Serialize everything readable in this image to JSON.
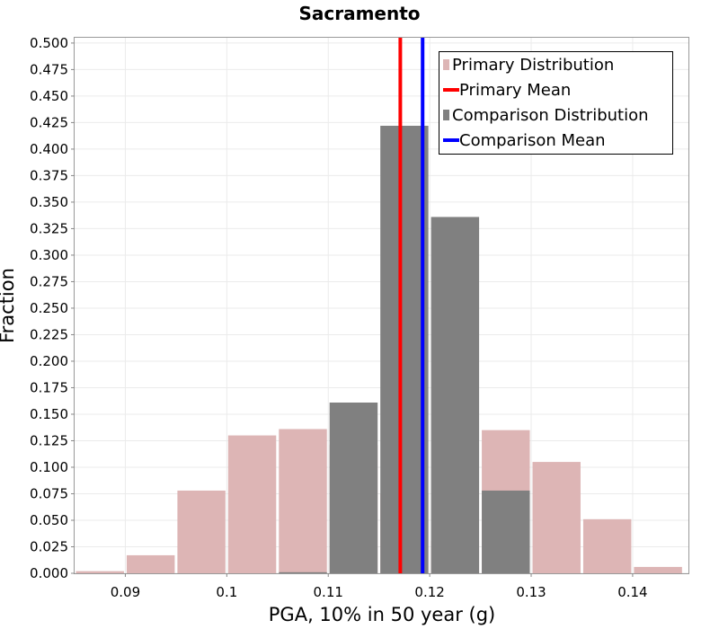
{
  "chart_data": {
    "type": "bar",
    "title": "Sacramento",
    "xlabel": "PGA, 10% in 50 year (g)",
    "ylabel": "Fraction",
    "xlim": [
      0.085,
      0.1455
    ],
    "ylim": [
      0,
      0.505
    ],
    "bin_width": 0.005,
    "x_ticks": [
      "0.09",
      "0.1",
      "0.11",
      "0.12",
      "0.13",
      "0.14"
    ],
    "x_tick_values": [
      0.09,
      0.1,
      0.11,
      0.12,
      0.13,
      0.14
    ],
    "y_ticks": [
      "0.000",
      "0.025",
      "0.050",
      "0.075",
      "0.100",
      "0.125",
      "0.150",
      "0.175",
      "0.200",
      "0.225",
      "0.250",
      "0.275",
      "0.300",
      "0.325",
      "0.350",
      "0.375",
      "0.400",
      "0.425",
      "0.450",
      "0.475",
      "0.500"
    ],
    "grid": true,
    "series": [
      {
        "name": "Primary Distribution",
        "kind": "histogram",
        "color": "#ddb5b5",
        "bins": [
          0.0875,
          0.0925,
          0.0975,
          0.1025,
          0.1075,
          0.1125,
          0.1175,
          0.1225,
          0.1275,
          0.1325,
          0.1375,
          0.1425
        ],
        "values": [
          0.002,
          0.017,
          0.078,
          0.13,
          0.136,
          0.121,
          0.075,
          0.031,
          0.135,
          0.105,
          0.051,
          0.006
        ]
      },
      {
        "name": "Comparison Distribution",
        "kind": "histogram",
        "color": "#808080",
        "bins": [
          0.1075,
          0.1125,
          0.1175,
          0.1225,
          0.1275
        ],
        "values": [
          0.001,
          0.161,
          0.422,
          0.336,
          0.078
        ]
      },
      {
        "name": "Primary Mean",
        "kind": "vline",
        "color": "#ff0000",
        "x": 0.1171
      },
      {
        "name": "Comparison Mean",
        "kind": "vline",
        "color": "#0000ff",
        "x": 0.1193
      }
    ],
    "legend": {
      "position": "top-right",
      "entries": [
        {
          "label": "Primary Distribution",
          "color": "#ddb5b5",
          "symbol": "square"
        },
        {
          "label": "Primary Mean",
          "color": "#ff0000",
          "symbol": "line"
        },
        {
          "label": "Comparison Distribution",
          "color": "#808080",
          "symbol": "square"
        },
        {
          "label": "Comparison Mean",
          "color": "#0000ff",
          "symbol": "line"
        }
      ]
    }
  }
}
